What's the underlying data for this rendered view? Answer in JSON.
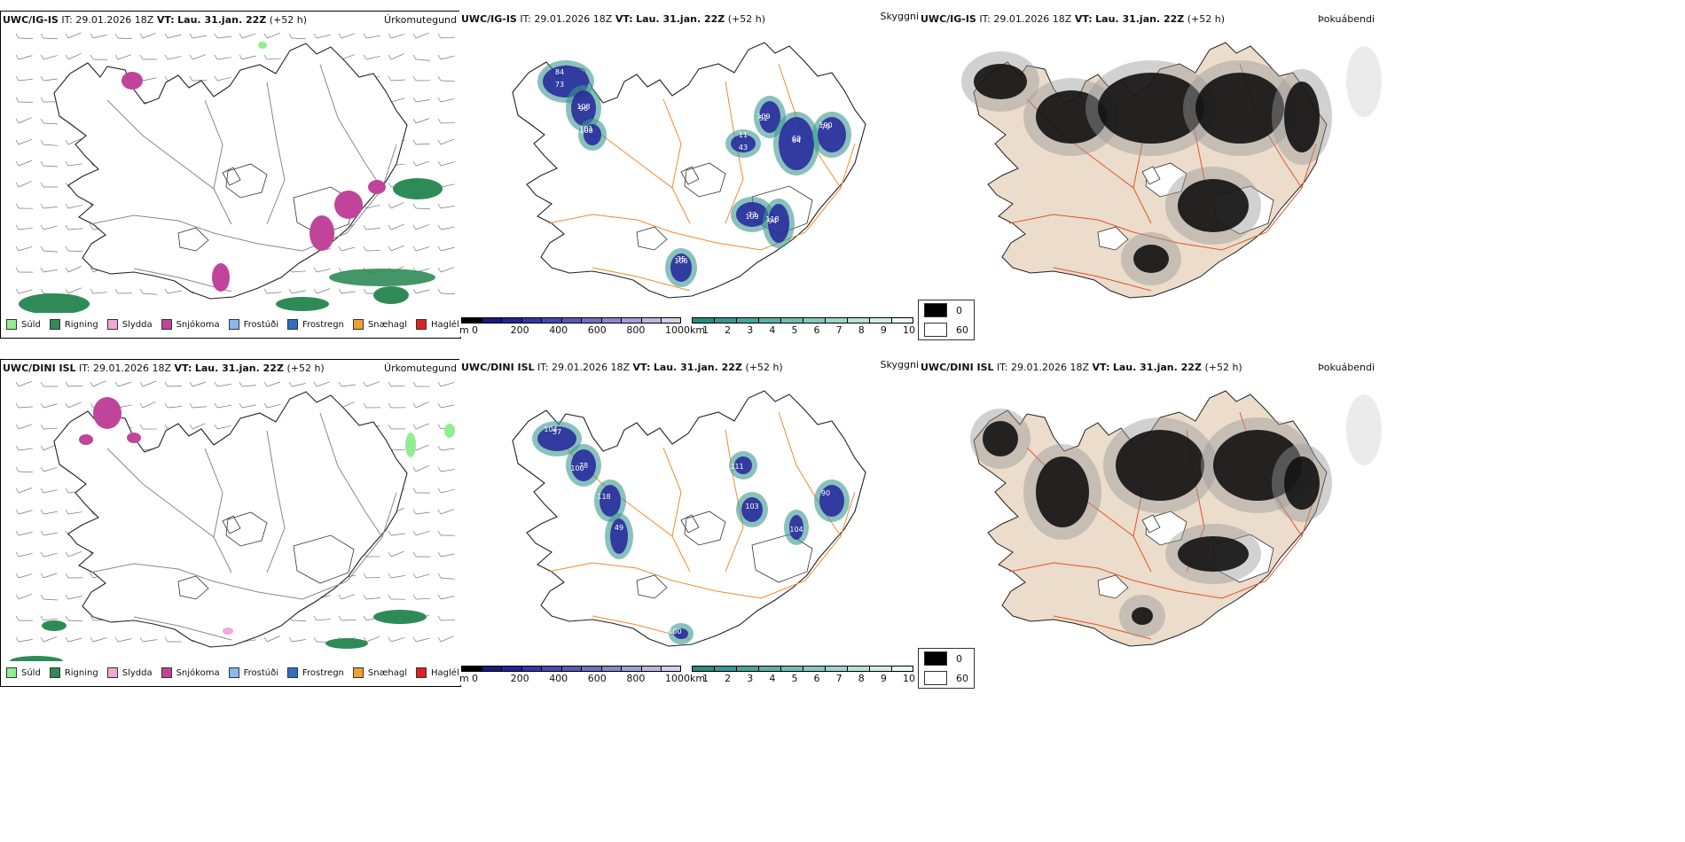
{
  "rows": [
    {
      "model": "UWC/IG-IS",
      "it_label": "IT:",
      "it_value": "29.01.2026 18Z",
      "vt_label": "VT:",
      "vt_value": "Lau. 31.jan. 22Z",
      "lead": "(+52 h)"
    },
    {
      "model": "UWC/DINI ISL",
      "it_label": "IT:",
      "it_value": "29.01.2026 18Z",
      "vt_label": "VT:",
      "vt_value": "Lau. 31.jan. 22Z",
      "lead": "(+52 h)"
    }
  ],
  "panel_titles": {
    "precip": "Úrkomutegund",
    "cloud": "Skyggni",
    "fog": "Þokuábendi"
  },
  "precip_legend": [
    {
      "label": "Súld",
      "color": "#90ee90"
    },
    {
      "label": "Rigning",
      "color": "#2e8b57"
    },
    {
      "label": "Slydda",
      "color": "#f4a6d7"
    },
    {
      "label": "Snjókoma",
      "color": "#c0449a"
    },
    {
      "label": "Frostúði",
      "color": "#87b8f0"
    },
    {
      "label": "Frostregn",
      "color": "#2e6fc4"
    },
    {
      "label": "Snæhagl",
      "color": "#f0a030"
    },
    {
      "label": "Haglél",
      "color": "#e02020"
    }
  ],
  "cloudbase_scale": {
    "unit": "m",
    "ticks": [
      "0",
      "200",
      "400",
      "600",
      "800",
      "1000"
    ],
    "colors": [
      "#000000",
      "#1a1a7a",
      "#23239a",
      "#3434a8",
      "#4848b0",
      "#5a5ab8",
      "#7070c0",
      "#8888c8",
      "#a0a0d4",
      "#b8b8e0",
      "#d0d0ea"
    ]
  },
  "visibility_scale": {
    "unit": "km",
    "ticks": [
      "1",
      "2",
      "3",
      "4",
      "5",
      "6",
      "7",
      "8",
      "9",
      "10"
    ],
    "colors": [
      "#2a8a80",
      "#3a9890",
      "#4aa49c",
      "#5cb0a8",
      "#72bcb4",
      "#88c8c0",
      "#a0d4cc",
      "#b8e0d8",
      "#d0ece6",
      "#eaf6f3"
    ]
  },
  "fog_key": [
    {
      "label": "0",
      "color": "#000000"
    },
    {
      "label": "60",
      "color": "#ffffff"
    }
  ],
  "cloudbase_values": {
    "top": [
      "84",
      "96",
      "100",
      "11",
      "52",
      "64",
      "79",
      "109",
      "94",
      "106",
      "73",
      "108",
      "101",
      "43",
      "109",
      "60",
      "190",
      "73",
      "118",
      "35"
    ],
    "bottom": [
      "104",
      "78",
      "118",
      "49",
      "111",
      "103",
      "90",
      "104",
      "100",
      "57",
      "100"
    ]
  }
}
